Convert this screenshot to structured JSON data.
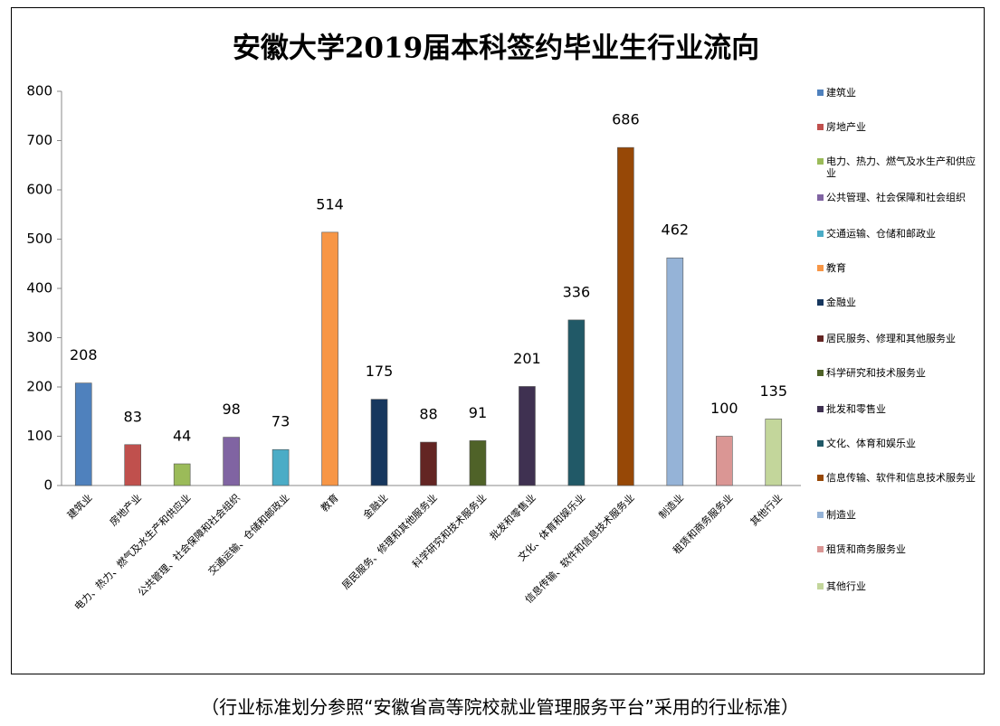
{
  "chart_data": {
    "type": "bar",
    "title": "安徽大学2019届本科签约毕业生行业流向",
    "categories": [
      "建筑业",
      "房地产业",
      "电力、热力、燃气及水生产和供应业",
      "公共管理、社会保障和社会组织",
      "交通运输、仓储和邮政业",
      "教育",
      "金融业",
      "居民服务、修理和其他服务业",
      "科学研究和技术服务业",
      "批发和零售业",
      "文化、体育和娱乐业",
      "信息传输、软件和信息技术服务业",
      "制造业",
      "租赁和商务服务业",
      "其他行业"
    ],
    "values": [
      208,
      83,
      44,
      98,
      73,
      514,
      175,
      88,
      91,
      201,
      336,
      686,
      462,
      100,
      135
    ],
    "colors": [
      "#4f81bd",
      "#c0504d",
      "#9bbb59",
      "#8064a2",
      "#4bacc6",
      "#f79646",
      "#17375e",
      "#632523",
      "#4f6228",
      "#3f3151",
      "#215967",
      "#974806",
      "#95b3d7",
      "#da9694",
      "#c3d69b"
    ],
    "ylim": [
      0,
      800
    ],
    "yticks": [
      0,
      100,
      200,
      300,
      400,
      500,
      600,
      700,
      800
    ],
    "grid": false,
    "legend": "right"
  },
  "caption": "（行业标准划分参照“安徽省高等院校就业管理服务平台”采用的行业标准）"
}
